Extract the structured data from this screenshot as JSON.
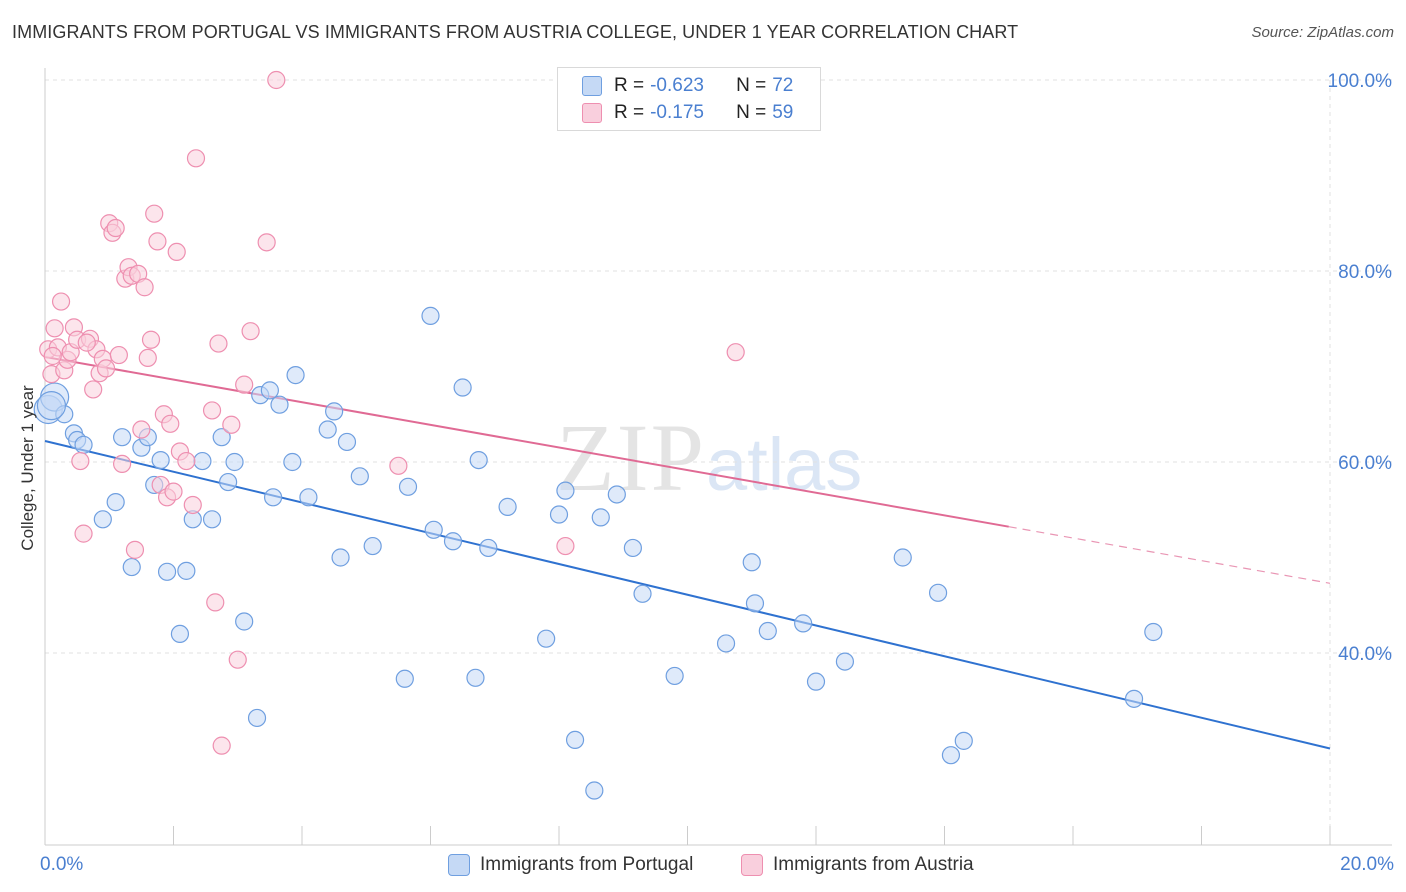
{
  "header": {
    "title": "IMMIGRANTS FROM PORTUGAL VS IMMIGRANTS FROM AUSTRIA COLLEGE, UNDER 1 YEAR CORRELATION CHART",
    "source": "Source: ZipAtlas.com"
  },
  "watermark": {
    "zip": "ZIP",
    "atlas": "atlas"
  },
  "legend": {
    "rows": [
      {
        "r_label": "R =",
        "r_value": "-0.623",
        "n_label": "N =",
        "n_value": "72"
      },
      {
        "r_label": "R =",
        "r_value": "-0.175",
        "n_label": "N =",
        "n_value": "59"
      }
    ]
  },
  "colors": {
    "portugal_fill": "#c5d9f5",
    "portugal_stroke": "#6f9fe0",
    "portugal_line": "#2f72d0",
    "austria_fill": "#f9cfdd",
    "austria_stroke": "#ee8fb0",
    "austria_line": "#e06a94",
    "grid": "#e2e2e2",
    "axis_text": "#4a7fd0"
  },
  "chart_data": {
    "type": "scatter",
    "title": "IMMIGRANTS FROM PORTUGAL VS IMMIGRANTS FROM AUSTRIA COLLEGE, UNDER 1 YEAR CORRELATION CHART",
    "xlabel": "",
    "ylabel": "College, Under 1 year",
    "xlim": [
      0,
      20
    ],
    "ylim": [
      20,
      102
    ],
    "x_tick_labels": [
      {
        "value": 0,
        "label": "0.0%"
      },
      {
        "value": 20,
        "label": "20.0%"
      }
    ],
    "y_tick_labels": [
      {
        "value": 40,
        "label": "40.0%"
      },
      {
        "value": 60,
        "label": "60.0%"
      },
      {
        "value": 80,
        "label": "80.0%"
      },
      {
        "value": 100,
        "label": "100.0%"
      }
    ],
    "x_minor_ticks": [
      2,
      4,
      6,
      8,
      10,
      12,
      14,
      16,
      18,
      20
    ],
    "grid": true,
    "legend_position": "top-center",
    "series": [
      {
        "name": "Immigrants from Portugal",
        "color_key": "portugal",
        "R": -0.623,
        "N": 72,
        "trend": {
          "x0": 0,
          "y0": 62.2,
          "x1": 20,
          "y1": 30.0,
          "solid_until": 20
        },
        "points": [
          [
            0.05,
            65.5
          ],
          [
            0.15,
            66.8
          ],
          [
            0.3,
            65.0
          ],
          [
            0.45,
            63.0
          ],
          [
            0.5,
            62.3
          ],
          [
            0.6,
            61.8
          ],
          [
            0.9,
            54.0
          ],
          [
            1.1,
            55.8
          ],
          [
            1.2,
            62.6
          ],
          [
            1.35,
            49.0
          ],
          [
            1.5,
            61.5
          ],
          [
            1.6,
            62.6
          ],
          [
            1.7,
            57.6
          ],
          [
            1.8,
            60.2
          ],
          [
            1.9,
            48.5
          ],
          [
            2.1,
            42.0
          ],
          [
            2.2,
            48.6
          ],
          [
            2.3,
            54.0
          ],
          [
            2.45,
            60.1
          ],
          [
            2.6,
            54.0
          ],
          [
            2.75,
            62.6
          ],
          [
            2.85,
            57.9
          ],
          [
            2.95,
            60.0
          ],
          [
            3.1,
            43.3
          ],
          [
            3.3,
            33.2
          ],
          [
            3.35,
            67.0
          ],
          [
            3.5,
            67.5
          ],
          [
            3.55,
            56.3
          ],
          [
            3.65,
            66.0
          ],
          [
            3.85,
            60.0
          ],
          [
            3.9,
            69.1
          ],
          [
            4.1,
            56.3
          ],
          [
            4.4,
            63.4
          ],
          [
            4.5,
            65.3
          ],
          [
            4.6,
            50.0
          ],
          [
            4.7,
            62.1
          ],
          [
            4.9,
            58.5
          ],
          [
            5.1,
            51.2
          ],
          [
            5.6,
            37.3
          ],
          [
            5.65,
            57.4
          ],
          [
            6.0,
            75.3
          ],
          [
            6.05,
            52.9
          ],
          [
            6.35,
            51.7
          ],
          [
            6.5,
            67.8
          ],
          [
            6.7,
            37.4
          ],
          [
            6.75,
            60.2
          ],
          [
            6.9,
            51.0
          ],
          [
            7.2,
            55.3
          ],
          [
            7.8,
            41.5
          ],
          [
            8.0,
            54.5
          ],
          [
            8.1,
            57.0
          ],
          [
            8.25,
            30.9
          ],
          [
            8.55,
            25.6
          ],
          [
            8.65,
            54.2
          ],
          [
            8.9,
            56.6
          ],
          [
            9.15,
            51.0
          ],
          [
            9.3,
            46.2
          ],
          [
            9.8,
            37.6
          ],
          [
            10.6,
            41.0
          ],
          [
            11.0,
            49.5
          ],
          [
            11.05,
            45.2
          ],
          [
            11.25,
            42.3
          ],
          [
            11.8,
            43.1
          ],
          [
            12.0,
            37.0
          ],
          [
            12.45,
            39.1
          ],
          [
            13.35,
            50.0
          ],
          [
            13.9,
            46.3
          ],
          [
            14.1,
            29.3
          ],
          [
            14.3,
            30.8
          ],
          [
            16.95,
            35.2
          ],
          [
            17.25,
            42.2
          ],
          [
            0.1,
            65.9
          ]
        ]
      },
      {
        "name": "Immigrants from Austria",
        "color_key": "austria",
        "R": -0.175,
        "N": 59,
        "trend": {
          "x0": 0,
          "y0": 71.0,
          "x1": 20,
          "y1": 47.3,
          "solid_until": 15
        },
        "points": [
          [
            0.05,
            71.8
          ],
          [
            0.1,
            69.2
          ],
          [
            0.15,
            74.0
          ],
          [
            0.2,
            72.0
          ],
          [
            0.25,
            76.8
          ],
          [
            0.3,
            69.6
          ],
          [
            0.35,
            70.7
          ],
          [
            0.4,
            71.5
          ],
          [
            0.45,
            74.1
          ],
          [
            0.5,
            72.8
          ],
          [
            0.55,
            60.1
          ],
          [
            0.6,
            52.5
          ],
          [
            0.7,
            72.9
          ],
          [
            0.75,
            67.6
          ],
          [
            0.8,
            71.8
          ],
          [
            0.85,
            69.3
          ],
          [
            0.9,
            70.8
          ],
          [
            0.95,
            69.8
          ],
          [
            1.0,
            85.0
          ],
          [
            1.05,
            84.0
          ],
          [
            1.1,
            84.5
          ],
          [
            1.2,
            59.8
          ],
          [
            1.25,
            79.2
          ],
          [
            1.3,
            80.4
          ],
          [
            1.35,
            79.5
          ],
          [
            1.4,
            50.8
          ],
          [
            1.45,
            79.7
          ],
          [
            1.5,
            63.4
          ],
          [
            1.55,
            78.3
          ],
          [
            1.6,
            70.9
          ],
          [
            1.65,
            72.8
          ],
          [
            1.7,
            86.0
          ],
          [
            1.75,
            83.1
          ],
          [
            1.8,
            57.6
          ],
          [
            1.85,
            65.0
          ],
          [
            1.9,
            56.3
          ],
          [
            1.95,
            64.0
          ],
          [
            2.0,
            56.9
          ],
          [
            2.05,
            82.0
          ],
          [
            2.1,
            61.1
          ],
          [
            2.2,
            60.1
          ],
          [
            2.3,
            55.5
          ],
          [
            2.35,
            91.8
          ],
          [
            2.6,
            65.4
          ],
          [
            2.65,
            45.3
          ],
          [
            2.7,
            72.4
          ],
          [
            2.75,
            30.3
          ],
          [
            2.9,
            63.9
          ],
          [
            3.0,
            39.3
          ],
          [
            3.1,
            68.1
          ],
          [
            3.2,
            73.7
          ],
          [
            3.45,
            83.0
          ],
          [
            3.6,
            100.0
          ],
          [
            5.5,
            59.6
          ],
          [
            8.1,
            51.2
          ],
          [
            10.75,
            71.5
          ],
          [
            0.12,
            71.1
          ],
          [
            0.65,
            72.5
          ],
          [
            1.15,
            71.2
          ]
        ]
      }
    ]
  },
  "bottom_legend": {
    "portugal_label": "Immigrants from Portugal",
    "austria_label": "Immigrants from Austria"
  }
}
